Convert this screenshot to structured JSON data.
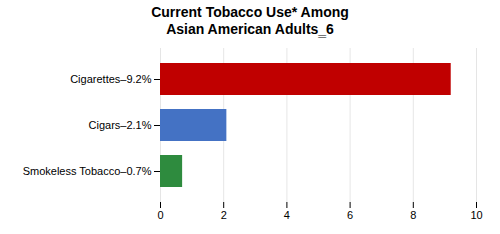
{
  "chart_data": {
    "type": "bar",
    "orientation": "horizontal",
    "title": "Current Tobacco Use* Among\nAsian American Adults‗6",
    "categories": [
      "Cigarettes–9.2%",
      "Cigars–2.1%",
      "Smokeless Tobacco–0.7%"
    ],
    "values": [
      9.2,
      2.1,
      0.7
    ],
    "colors": [
      "#c00000",
      "#4472c4",
      "#2e8b3e"
    ],
    "xlim": [
      0,
      10
    ],
    "xticks": [
      0,
      2,
      4,
      6,
      8,
      10
    ],
    "grid": true
  }
}
